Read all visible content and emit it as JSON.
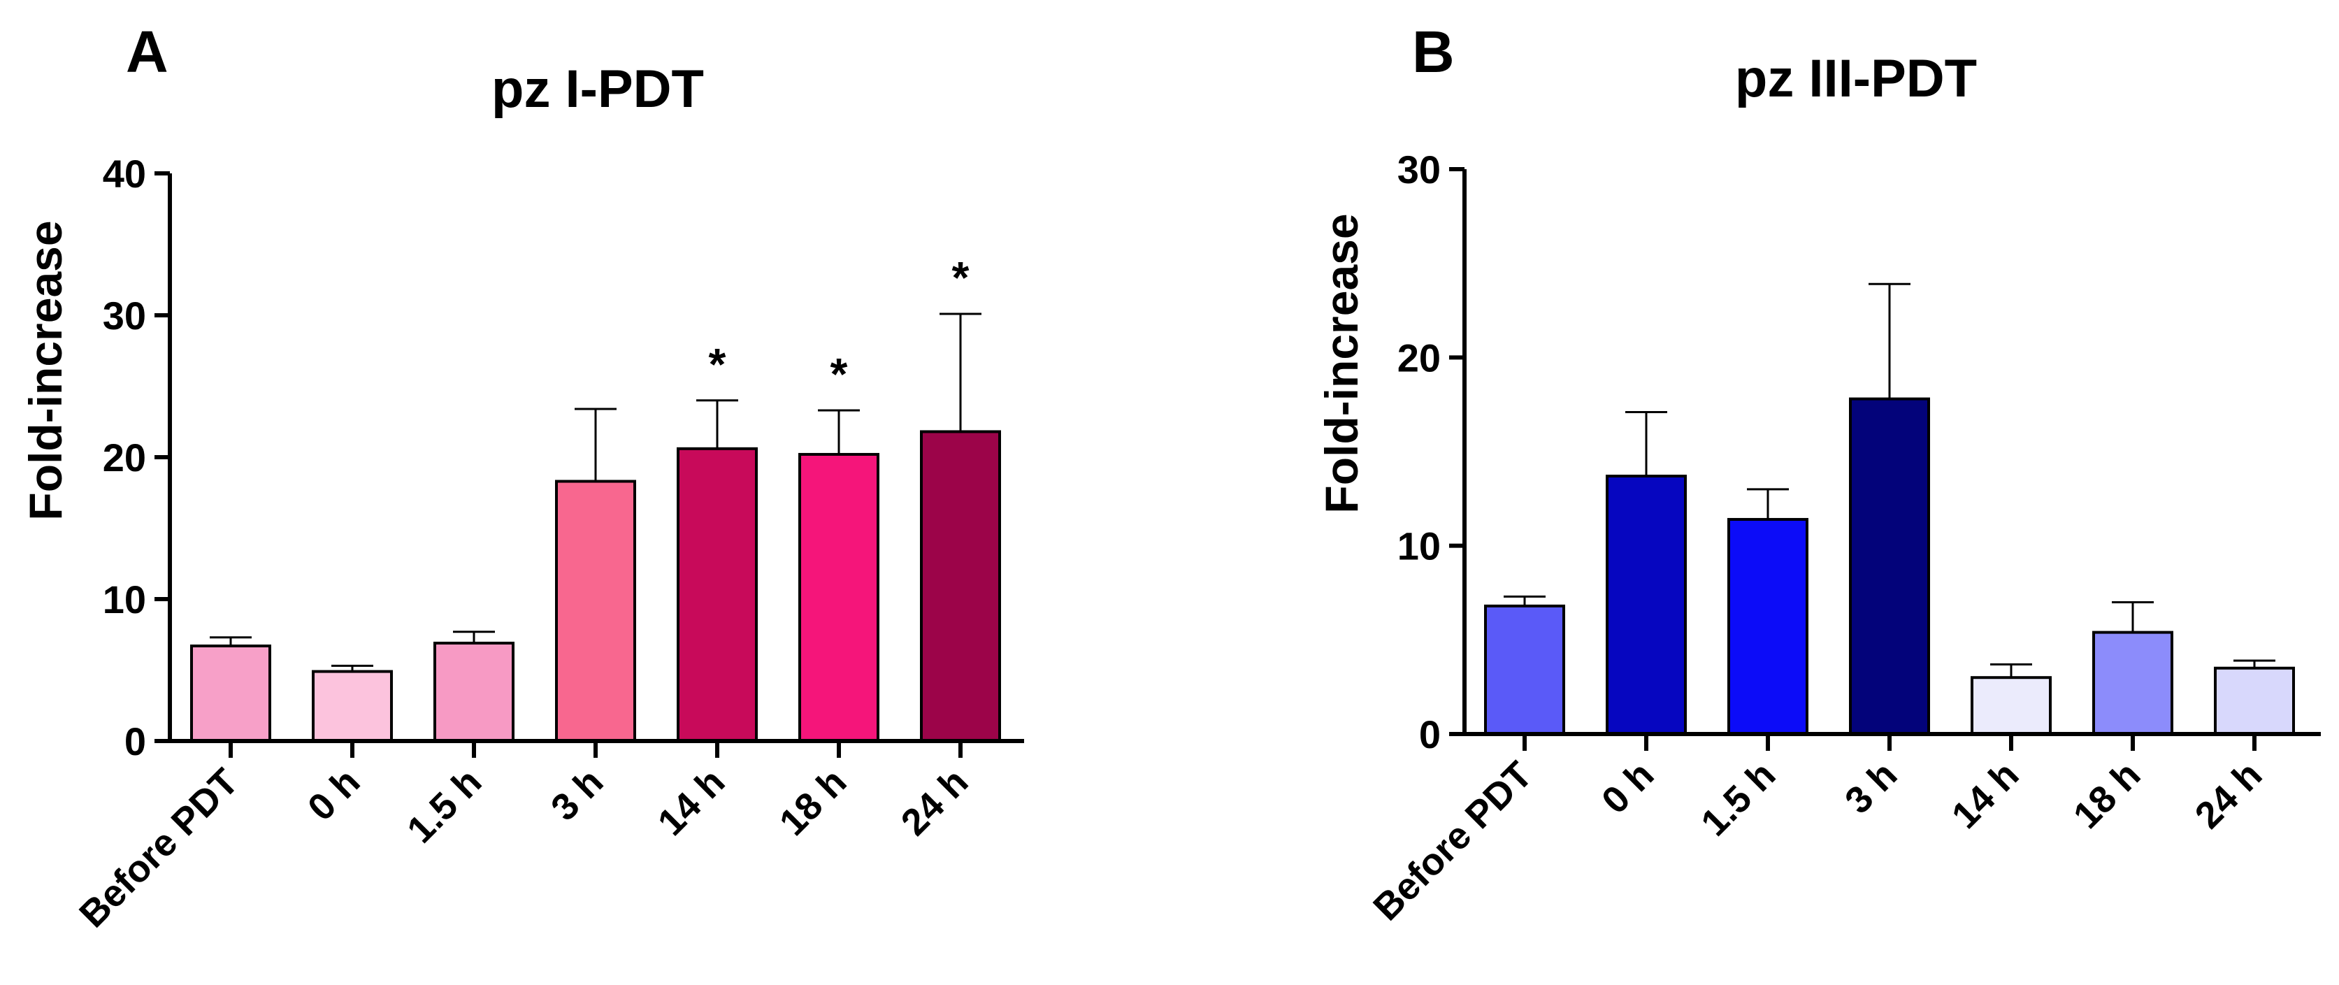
{
  "chart_data": [
    {
      "panel": "A",
      "type": "bar",
      "title": "pz I-PDT",
      "xlabel": "",
      "ylabel": "Fold-increase",
      "ylim": [
        0,
        40
      ],
      "yticks": [
        "0",
        "10",
        "20",
        "30",
        "40"
      ],
      "categories": [
        "Before PDT",
        "0 h",
        "1.5 h",
        "3 h",
        "14 h",
        "18 h",
        "24 h"
      ],
      "values": [
        6.7,
        4.9,
        6.9,
        18.3,
        20.6,
        20.2,
        21.8
      ],
      "error_upper": [
        7.3,
        5.3,
        7.7,
        23.4,
        24.0,
        23.3,
        30.1
      ],
      "significance": [
        "",
        "",
        "",
        "",
        "*",
        "*",
        "*"
      ],
      "colors": [
        "#f7a0c8",
        "#fcc3dd",
        "#f79ac4",
        "#f8678f",
        "#c80a5a",
        "#f5157a",
        "#9c0449"
      ]
    },
    {
      "panel": "B",
      "type": "bar",
      "title": "pz III-PDT",
      "xlabel": "",
      "ylabel": "Fold-increase",
      "ylim": [
        0,
        30
      ],
      "yticks": [
        "0",
        "10",
        "20",
        "30"
      ],
      "categories": [
        "Before PDT",
        "0 h",
        "1.5 h",
        "3 h",
        "14 h",
        "18 h",
        "24 h"
      ],
      "values": [
        6.8,
        13.7,
        11.4,
        17.8,
        3.0,
        5.4,
        3.5
      ],
      "error_upper": [
        7.3,
        17.1,
        13.0,
        23.9,
        3.7,
        7.0,
        3.9
      ],
      "significance": [
        "",
        "",
        "",
        "",
        "",
        "",
        ""
      ],
      "colors": [
        "#5a5af8",
        "#0606c0",
        "#0c0cf8",
        "#03037a",
        "#ebebfc",
        "#8c8cfb",
        "#d8d8fc"
      ]
    }
  ]
}
